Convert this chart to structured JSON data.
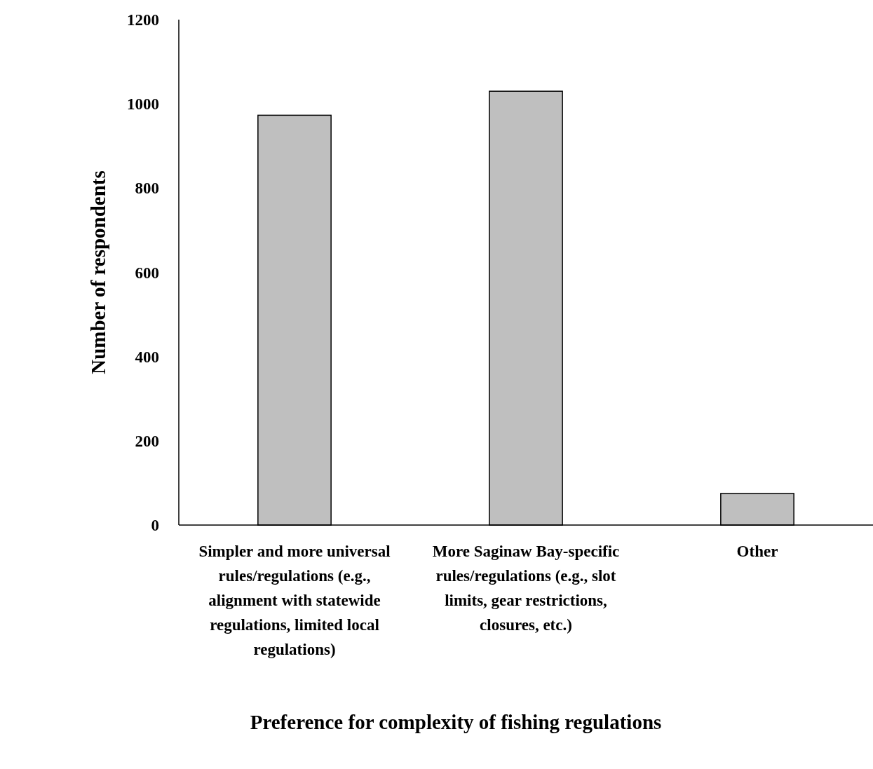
{
  "chart_data": {
    "type": "bar",
    "xlabel": "Preference for complexity of fishing regulations",
    "ylabel": "Number of respondents",
    "categories": [
      "Simpler and more universal rules/regulations (e.g., alignment with statewide regulations, limited local regulations)",
      "More Saginaw Bay-specific rules/regulations (e.g., slot limits, gear restrictions, closures, etc.)",
      "Other"
    ],
    "values": [
      973,
      1030,
      75
    ],
    "color": "#bfbfbf",
    "ylim": [
      0,
      1200
    ],
    "yticks": [
      0,
      200,
      400,
      600,
      800,
      1000,
      1200
    ],
    "grid": false
  }
}
